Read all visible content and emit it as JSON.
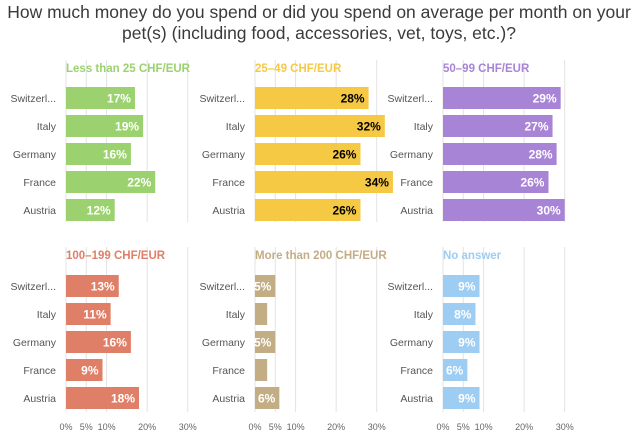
{
  "title_lines": [
    "How much money do you spend or did you spend on average per month on your",
    "pet(s) (including food, accessories, vet, toys, etc.)?"
  ],
  "chart_data": {
    "type": "bar",
    "orientation": "horizontal",
    "layout": "small-multiples 3x2",
    "categories": [
      "Switzerl...",
      "Italy",
      "Germany",
      "France",
      "Austria"
    ],
    "x_ticks": [
      "0%",
      "5%",
      "10%",
      "20%",
      "30%"
    ],
    "x_tick_values": [
      0,
      5,
      10,
      20,
      30
    ],
    "xlim": [
      0,
      35
    ],
    "grid": true,
    "series": [
      {
        "name": "Less than 25 CHF/EUR",
        "color": "#9bd26f",
        "label_color": "#ffffff",
        "values": [
          17,
          19,
          16,
          22,
          12
        ],
        "labels": [
          "17%",
          "19%",
          "16%",
          "22%",
          "12%"
        ]
      },
      {
        "name": "25–49 CHF/EUR",
        "color": "#f6c945",
        "label_color": "#000000",
        "values": [
          28,
          32,
          26,
          34,
          26
        ],
        "labels": [
          "28%",
          "32%",
          "26%",
          "34%",
          "26%"
        ]
      },
      {
        "name": "50–99 CHF/EUR",
        "color": "#a884d6",
        "label_color": "#ffffff",
        "values": [
          29,
          27,
          28,
          26,
          30
        ],
        "labels": [
          "29%",
          "27%",
          "28%",
          "26%",
          "30%"
        ]
      },
      {
        "name": "100–199 CHF/EUR",
        "color": "#e07f67",
        "label_color": "#ffffff",
        "values": [
          13,
          11,
          16,
          9,
          18
        ],
        "labels": [
          "13%",
          "11%",
          "16%",
          "9%",
          "18%"
        ]
      },
      {
        "name": "More than 200 CHF/EUR",
        "color": "#c3ad85",
        "label_color": "#ffffff",
        "values": [
          5,
          3,
          5,
          3,
          6
        ],
        "labels": [
          "5%",
          "",
          "5%",
          "",
          "6%"
        ]
      },
      {
        "name": "No answer",
        "color": "#9dcdf2",
        "label_color": "#ffffff",
        "values": [
          9,
          8,
          9,
          6,
          9
        ],
        "labels": [
          "9%",
          "8%",
          "9%",
          "6%",
          "9%"
        ]
      }
    ]
  }
}
